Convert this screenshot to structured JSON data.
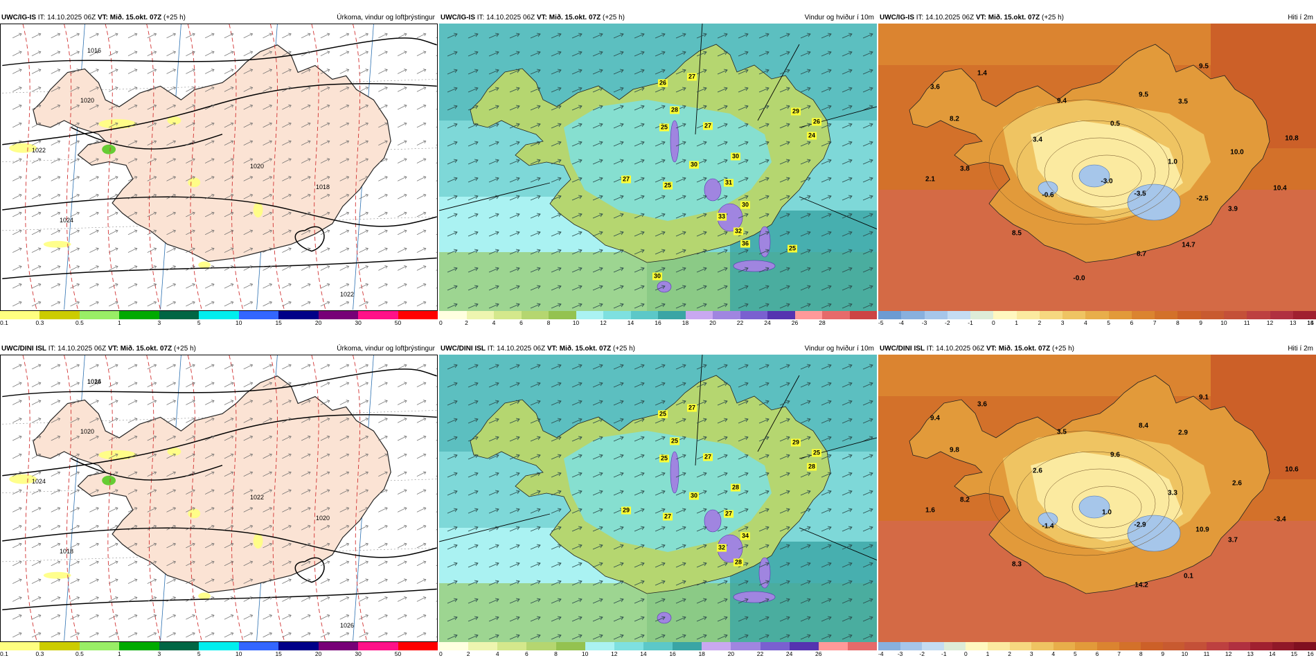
{
  "panels": [
    {
      "model": "UWC/IG-IS",
      "it": "IT: 14.10.2025 06Z",
      "vt": "VT: Mið. 15.okt. 07Z",
      "lead": "(+25 h)",
      "title": "Úrkoma, vindur og loftþrýstingur",
      "colorbar": {
        "colors": [
          "#ffff80",
          "#cccc00",
          "#99ee66",
          "#00aa00",
          "#006644",
          "#00eeee",
          "#3366ff",
          "#000088",
          "#770077",
          "#ff1188",
          "#ff0000"
        ],
        "ticks": [
          "0.1",
          "0.3",
          "0.5",
          "1",
          "3",
          "5",
          "10",
          "15",
          "20",
          "30",
          "50"
        ]
      },
      "isobars": [
        "1016",
        "1020",
        "1022",
        "1020",
        "1024",
        "1018",
        "1022"
      ]
    },
    {
      "model": "UWC/IG-IS",
      "it": "IT: 14.10.2025 06Z",
      "vt": "VT: Mið. 15.okt. 07Z",
      "lead": "(+25 h)",
      "title": "Vindur og hviður í 10m",
      "colorbar": {
        "colors": [
          "#ffffe0",
          "#eef5b0",
          "#d4e88c",
          "#b5d670",
          "#94c250",
          "#aaf2f2",
          "#7ee0e0",
          "#5cc8c8",
          "#3aa5a5",
          "#c9a8f0",
          "#a085e0",
          "#7a60d0",
          "#5533b0",
          "#ff9999",
          "#e66a6a",
          "#cc4444"
        ],
        "ticks": [
          "0",
          "2",
          "4",
          "6",
          "8",
          "10",
          "12",
          "14",
          "16",
          "18",
          "20",
          "22",
          "24",
          "26",
          "28"
        ]
      },
      "gust_labels": [
        "26",
        "27",
        "28",
        "25",
        "27",
        "30",
        "30",
        "31",
        "29",
        "26",
        "24",
        "27",
        "25",
        "33",
        "30",
        "32",
        "36",
        "25",
        "30"
      ]
    },
    {
      "model": "UWC/IG-IS",
      "it": "IT: 14.10.2025 06Z",
      "vt": "VT: Mið. 15.okt. 07Z",
      "lead": "(+25 h)",
      "title": "Hiti í 2m",
      "colorbar": {
        "colors": [
          "#6c9bd2",
          "#88b0de",
          "#a6c6ea",
          "#c4dcf2",
          "#ddecd8",
          "#fff8c0",
          "#fbeaa0",
          "#f6d880",
          "#efc462",
          "#e8ae4a",
          "#e29a3a",
          "#db8430",
          "#d3712a",
          "#cc6028",
          "#c85a30",
          "#c45038",
          "#bd4040",
          "#b03040",
          "#a02030"
        ],
        "ticks": [
          "-5",
          "-4",
          "-3",
          "-2",
          "-1",
          "0",
          "1",
          "2",
          "3",
          "4",
          "5",
          "6",
          "7",
          "8",
          "9",
          "10",
          "11",
          "12",
          "13",
          "14",
          "15"
        ]
      },
      "temps": [
        "1.4",
        "9.5",
        "3.6",
        "9.4",
        "9.5",
        "3.5",
        "8.2",
        "0.5",
        "3.4",
        "10.0",
        "10.8",
        "3.8",
        "1.0",
        "2.1",
        "-3.0",
        "-0.6",
        "-3.5",
        "10.4",
        "-2.5",
        "3.9",
        "8.5",
        "8.7",
        "14.7",
        "-0.0"
      ]
    },
    {
      "model": "UWC/DINI ISL",
      "it": "IT: 14.10.2025 06Z",
      "vt": "VT: Mið. 15.okt. 07Z",
      "lead": "(+25 h)",
      "title": "Úrkoma, vindur og loftþrýstingur",
      "colorbar": {
        "colors": [
          "#ffff80",
          "#cccc00",
          "#99ee66",
          "#00aa00",
          "#006644",
          "#00eeee",
          "#3366ff",
          "#000088",
          "#770077",
          "#ff1188",
          "#ff0000"
        ],
        "ticks": [
          "0.1",
          "0.3",
          "0.5",
          "1",
          "3",
          "5",
          "10",
          "15",
          "20",
          "30",
          "50"
        ]
      },
      "isobars": [
        "1016",
        "1020",
        "1024",
        "1022",
        "1018",
        "1020",
        "1026",
        "1024"
      ]
    },
    {
      "model": "UWC/DINI ISL",
      "it": "IT: 14.10.2025 06Z",
      "vt": "VT: Mið. 15.okt. 07Z",
      "lead": "(+25 h)",
      "title": "Vindur og hviður í 10m",
      "colorbar": {
        "colors": [
          "#ffffe0",
          "#eef5b0",
          "#d4e88c",
          "#b5d670",
          "#94c250",
          "#aaf2f2",
          "#7ee0e0",
          "#5cc8c8",
          "#3aa5a5",
          "#c9a8f0",
          "#a085e0",
          "#7a60d0",
          "#5533b0",
          "#ff9999",
          "#e66a6a"
        ],
        "ticks": [
          "0",
          "2",
          "4",
          "6",
          "8",
          "10",
          "12",
          "14",
          "16",
          "18",
          "20",
          "22",
          "24",
          "26"
        ]
      },
      "gust_labels": [
        "25",
        "27",
        "25",
        "25",
        "27",
        "28",
        "30",
        "27",
        "29",
        "25",
        "28",
        "29",
        "27",
        "32",
        "34",
        "28"
      ]
    },
    {
      "model": "UWC/DINI ISL",
      "it": "IT: 14.10.2025 06Z",
      "vt": "VT: Mið. 15.okt. 07Z",
      "lead": "(+25 h)",
      "title": "Hiti í 2m",
      "colorbar": {
        "colors": [
          "#88b0de",
          "#a6c6ea",
          "#c4dcf2",
          "#ddecd8",
          "#fff8c0",
          "#fbeaa0",
          "#f6d880",
          "#efc462",
          "#e8ae4a",
          "#e29a3a",
          "#db8430",
          "#d3712a",
          "#cc6028",
          "#c85a30",
          "#c45038",
          "#bd4040",
          "#b03040",
          "#a02030",
          "#901828",
          "#801020"
        ],
        "ticks": [
          "-4",
          "-3",
          "-2",
          "-1",
          "0",
          "1",
          "2",
          "3",
          "4",
          "5",
          "6",
          "7",
          "8",
          "9",
          "10",
          "11",
          "12",
          "13",
          "14",
          "15",
          "16"
        ]
      },
      "temps": [
        "3.6",
        "9.1",
        "9.4",
        "3.5",
        "8.4",
        "2.9",
        "9.8",
        "9.6",
        "2.6",
        "2.6",
        "10.6",
        "8.2",
        "3.3",
        "1.6",
        "1.0",
        "-1.4",
        "-2.9",
        "-3.4",
        "10.9",
        "3.7",
        "8.3",
        "14.2",
        "0.1"
      ]
    }
  ]
}
